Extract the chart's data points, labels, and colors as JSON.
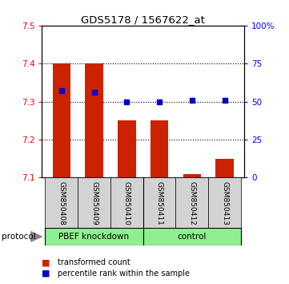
{
  "title": "GDS5178 / 1567622_at",
  "samples": [
    "GSM850408",
    "GSM850409",
    "GSM850410",
    "GSM850411",
    "GSM850412",
    "GSM850413"
  ],
  "red_values": [
    7.4,
    7.4,
    7.25,
    7.25,
    7.11,
    7.15
  ],
  "blue_values": [
    57,
    56,
    50,
    50,
    51,
    51
  ],
  "ylim_left": [
    7.1,
    7.5
  ],
  "ylim_right": [
    0,
    100
  ],
  "yticks_left": [
    7.1,
    7.2,
    7.3,
    7.4,
    7.5
  ],
  "yticks_right": [
    0,
    25,
    50,
    75,
    100
  ],
  "ytick_labels_right": [
    "0",
    "25",
    "50",
    "75",
    "100%"
  ],
  "bar_color": "#CC2200",
  "dot_color": "#0000CC",
  "bar_bottom": 7.1,
  "grid_lines": [
    7.2,
    7.3,
    7.4
  ],
  "protocol_label": "protocol",
  "group1_label": "PBEF knockdown",
  "group2_label": "control",
  "group_bg": "#90EE90",
  "sample_box_color": "#D3D3D3",
  "legend_items": [
    {
      "label": "transformed count",
      "color": "#CC2200"
    },
    {
      "label": "percentile rank within the sample",
      "color": "#0000CC"
    }
  ]
}
